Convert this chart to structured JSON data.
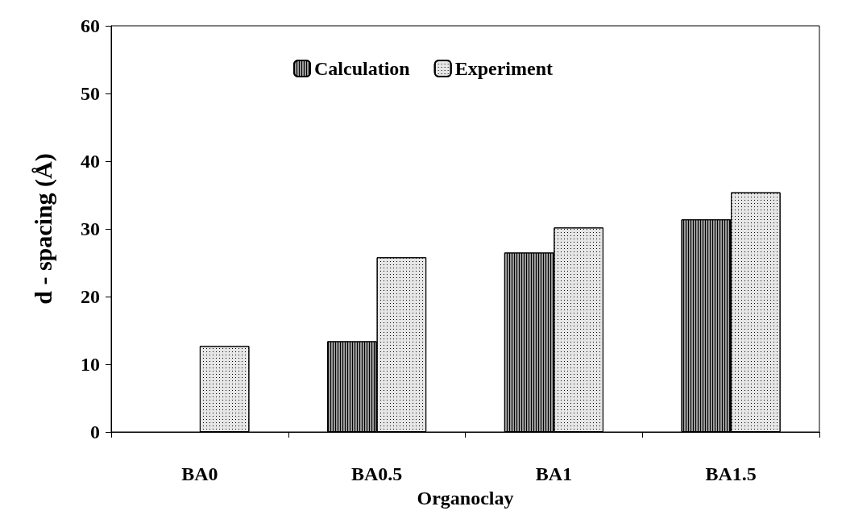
{
  "chart_data": {
    "type": "bar",
    "xlabel": "Organoclay",
    "ylabel": "d - spacing (Å)",
    "categories": [
      "BA0",
      "BA0.5",
      "BA1",
      "BA1.5"
    ],
    "series": [
      {
        "name": "Calculation",
        "color": "#9a9a9a",
        "values": [
          null,
          13.4,
          26.5,
          31.4
        ]
      },
      {
        "name": "Experiment",
        "color": "#e6e6e6",
        "values": [
          12.7,
          25.8,
          30.2,
          35.4
        ]
      }
    ],
    "ylim": [
      0,
      60
    ],
    "yticks": [
      0,
      10,
      20,
      30,
      40,
      50,
      60
    ],
    "grid": false,
    "legend": "top"
  }
}
